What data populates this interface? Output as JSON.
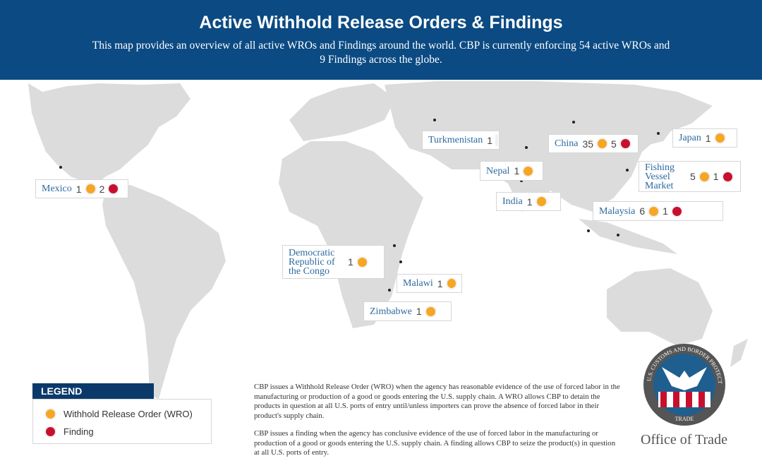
{
  "header": {
    "title": "Active Withhold Release Orders & Findings",
    "subtitle": "This map provides an overview of all active WROs and Findings around the world. CBP is currently enforcing 54 active WROs and 9 Findings across the globe."
  },
  "locations": [
    {
      "name": "Mexico",
      "wro": "1",
      "finding": "2"
    },
    {
      "name": "Turkmenistan",
      "wro": "1"
    },
    {
      "name": "China",
      "wro": "35",
      "finding": "5"
    },
    {
      "name": "Japan",
      "wro": "1"
    },
    {
      "name": "Nepal",
      "wro": "1"
    },
    {
      "name": "Fishing Vessel Market",
      "wro": "5",
      "finding": "1"
    },
    {
      "name": "India",
      "wro": "1"
    },
    {
      "name": "Malaysia",
      "wro": "6",
      "finding": "1"
    },
    {
      "name": "Democratic Republic of the Congo",
      "wro": "1"
    },
    {
      "name": "Malawi",
      "wro": "1"
    },
    {
      "name": "Zimbabwe",
      "wro": "1"
    }
  ],
  "legend": {
    "title": "LEGEND",
    "items": [
      {
        "label": "Withhold Release Order (WRO)",
        "color": "#f6a623"
      },
      {
        "label": "Finding",
        "color": "#c8102e"
      }
    ]
  },
  "notes": [
    "CBP issues a Withhold Release Order (WRO) when the agency has reasonable evidence of the use of forced labor in the manufacturing or production of a good or goods entering the U.S. supply chain. A WRO allows CBP to detain the products in question at all U.S. ports of entry until/unless importers can prove the absence of forced labor in their product's supply chain.",
    "CBP issues a finding when the agency has conclusive evidence of the use of forced labor in the manufacturing or production of a good or goods entering the U.S. supply chain. A finding allows CBP to seize the product(s) in question at all U.S. ports of entry."
  ],
  "seal": {
    "ring_text": "U.S. CUSTOMS AND BORDER PROTECTION",
    "bottom_text": "TRADE"
  },
  "footer": {
    "office": "Office of Trade"
  }
}
